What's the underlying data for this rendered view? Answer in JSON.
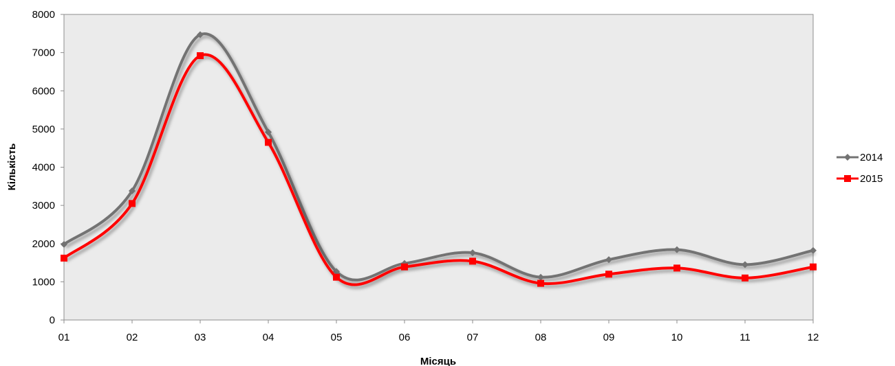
{
  "chart_data": {
    "type": "line",
    "title": "",
    "xlabel": "Місяць",
    "ylabel": "Кількість",
    "categories": [
      "01",
      "02",
      "03",
      "04",
      "05",
      "06",
      "07",
      "08",
      "09",
      "10",
      "11",
      "12"
    ],
    "ylim": [
      0,
      8000
    ],
    "yticks": [
      0,
      1000,
      2000,
      3000,
      4000,
      5000,
      6000,
      7000,
      8000
    ],
    "grid": false,
    "smooth": true,
    "legend_position": "right",
    "plot_background": "#ebebeb",
    "series": [
      {
        "name": "2014",
        "color": "#737373",
        "marker": "diamond",
        "values": [
          1980,
          3380,
          7470,
          4920,
          1270,
          1480,
          1760,
          1120,
          1580,
          1840,
          1450,
          1820
        ]
      },
      {
        "name": "2015",
        "color": "#ff0000",
        "marker": "square",
        "values": [
          1620,
          3050,
          6920,
          4650,
          1120,
          1390,
          1540,
          960,
          1200,
          1360,
          1100,
          1390
        ]
      }
    ]
  }
}
